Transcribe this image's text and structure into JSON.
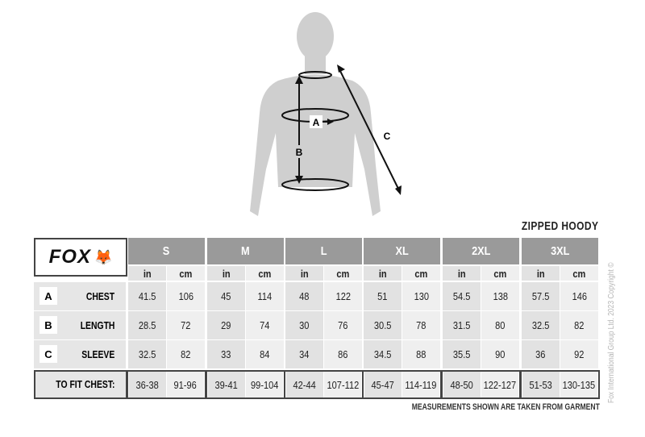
{
  "brand": "FOX",
  "title": "ZIPPED HOODY",
  "diagram_labels": {
    "a": "A",
    "b": "B",
    "c": "C"
  },
  "units": {
    "in": "in",
    "cm": "cm"
  },
  "sizes": [
    {
      "label": "S",
      "chest": [
        "41.5",
        "106"
      ],
      "length": [
        "28.5",
        "72"
      ],
      "sleeve": [
        "32.5",
        "82"
      ],
      "fit": [
        "36-38",
        "91-96"
      ]
    },
    {
      "label": "M",
      "chest": [
        "45",
        "114"
      ],
      "length": [
        "29",
        "74"
      ],
      "sleeve": [
        "33",
        "84"
      ],
      "fit": [
        "39-41",
        "99-104"
      ]
    },
    {
      "label": "L",
      "chest": [
        "48",
        "122"
      ],
      "length": [
        "30",
        "76"
      ],
      "sleeve": [
        "34",
        "86"
      ],
      "fit": [
        "42-44",
        "107-112"
      ]
    },
    {
      "label": "XL",
      "chest": [
        "51",
        "130"
      ],
      "length": [
        "30.5",
        "78"
      ],
      "sleeve": [
        "34.5",
        "88"
      ],
      "fit": [
        "45-47",
        "114-119"
      ]
    },
    {
      "label": "2XL",
      "chest": [
        "54.5",
        "138"
      ],
      "length": [
        "31.5",
        "80"
      ],
      "sleeve": [
        "35.5",
        "90"
      ],
      "fit": [
        "48-50",
        "122-127"
      ]
    },
    {
      "label": "3XL",
      "chest": [
        "57.5",
        "146"
      ],
      "length": [
        "32.5",
        "82"
      ],
      "sleeve": [
        "36",
        "92"
      ],
      "fit": [
        "51-53",
        "130-135"
      ]
    }
  ],
  "rows": [
    {
      "key": "chest",
      "letter": "A",
      "label": "CHEST"
    },
    {
      "key": "length",
      "letter": "B",
      "label": "LENGTH"
    },
    {
      "key": "sleeve",
      "letter": "C",
      "label": "SLEEVE"
    }
  ],
  "fit_label": "TO FIT CHEST:",
  "note": "MEASUREMENTS SHOWN ARE TAKEN FROM GARMENT",
  "copyright": "Fox International Group Ltd. 2023 Copyright ©",
  "colors": {
    "header": "#9a9a9a",
    "in_cell": "#e2e2e2",
    "cm_cell": "#efefef",
    "silhouette": "#cfcfcf"
  }
}
